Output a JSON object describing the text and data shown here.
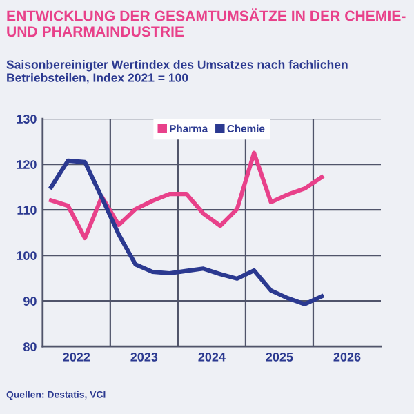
{
  "chart_data": {
    "type": "line",
    "title": "ENTWICKLUNG DER GESAMTUMSÄTZE IN DER CHEMIE- UND PHARMAINDUSTRIE",
    "subtitle": "Saisonbereinigter Wertindex des Umsatzes nach fachlichen Betriebsteilen, Index 2021 = 100",
    "x": [
      2022.125,
      2022.375,
      2022.625,
      2022.875,
      2023.125,
      2023.375,
      2023.625,
      2023.875,
      2024.125,
      2024.375,
      2024.625,
      2024.875,
      2025.125,
      2025.375,
      2025.625,
      2025.875,
      2026.125
    ],
    "series": [
      {
        "name": "Pharma",
        "color": "#e8418a",
        "values": [
          112.1,
          110.9,
          103.8,
          112.9,
          106.7,
          110.2,
          112,
          113.5,
          113.5,
          109.2,
          106.5,
          110.2,
          122.5,
          111.7,
          113.4,
          114.7,
          117.2
        ]
      },
      {
        "name": "Chemie",
        "color": "#2b3990",
        "values": [
          115,
          120.8,
          120.5,
          112.7,
          104.6,
          98,
          96.4,
          96.1,
          96.6,
          97.1,
          95.9,
          94.9,
          96.7,
          92.3,
          90.6,
          89.3,
          91
        ]
      }
    ],
    "xlim": [
      2022,
      2027
    ],
    "xticks": [
      {
        "value": 2022.5,
        "label": "2022"
      },
      {
        "value": 2023,
        "label": null
      },
      {
        "value": 2023.5,
        "label": "2023"
      },
      {
        "value": 2024,
        "label": null
      },
      {
        "value": 2024.5,
        "label": "2024"
      },
      {
        "value": 2025,
        "label": null
      },
      {
        "value": 2025.5,
        "label": "2025"
      },
      {
        "value": 2026,
        "label": null
      },
      {
        "value": 2026.5,
        "label": "2026"
      }
    ],
    "ylim": [
      80,
      130
    ],
    "yticks": [
      80,
      90,
      100,
      110,
      120,
      130
    ],
    "grid": true,
    "legend": "top",
    "marker": "none",
    "line_style": "solid",
    "annotations": [
      "Quellen: Destatis, VCI"
    ]
  }
}
